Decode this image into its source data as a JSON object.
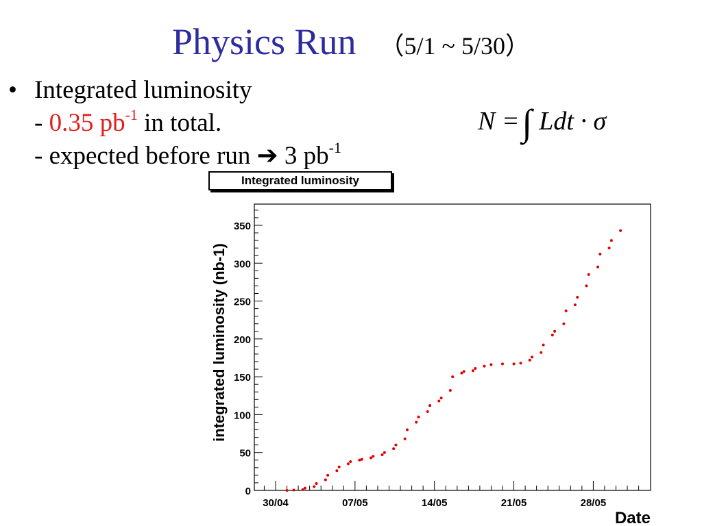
{
  "slide": {
    "title": "Physics Run",
    "title_range": "（5/1 ~ 5/30）"
  },
  "bullets": {
    "heading": "Integrated luminosity",
    "line1_prefix": "- ",
    "line1_value": "0.35 pb",
    "line1_sup": "-1",
    "line1_suffix": " in total.",
    "line2_prefix": "- expected before run ",
    "line2_arrow": "➔",
    "line2_value": " 3 pb",
    "line2_sup": "-1"
  },
  "formula": {
    "lhs": "N =",
    "integral": "∫",
    "rhs": "Ldt · σ"
  },
  "colors": {
    "title": "#2c2c9e",
    "highlight": "#e02020",
    "markers": "#e00000"
  },
  "chart_data": {
    "type": "scatter",
    "title": "Integrated luminosity",
    "xlabel": "Date",
    "ylabel": "integrated luminosity (nb-1)",
    "x_ticks": [
      "30/04",
      "07/05",
      "14/05",
      "21/05",
      "28/05"
    ],
    "y_ticks": [
      0,
      50,
      100,
      150,
      200,
      250,
      300,
      350
    ],
    "ylim": [
      0,
      378
    ],
    "grid": false,
    "series": [
      {
        "points": [
          [
            "01/05",
            0
          ],
          [
            "02/05",
            0.5
          ],
          [
            "02/05",
            1
          ],
          [
            "03/05",
            3
          ],
          [
            "03/05",
            5
          ],
          [
            "04/05",
            9
          ],
          [
            "04/05",
            14
          ],
          [
            "05/05",
            20
          ],
          [
            "05/05",
            26
          ],
          [
            "06/05",
            31
          ],
          [
            "06/05",
            35
          ],
          [
            "07/05",
            38
          ],
          [
            "07/05",
            40
          ],
          [
            "08/05",
            41
          ],
          [
            "08/05",
            43
          ],
          [
            "09/05",
            45
          ],
          [
            "09/05",
            47
          ],
          [
            "10/05",
            50
          ],
          [
            "10/05",
            55
          ],
          [
            "11/05",
            60
          ],
          [
            "11/05",
            68
          ],
          [
            "12/05",
            80
          ],
          [
            "12/05",
            90
          ],
          [
            "13/05",
            97
          ],
          [
            "13/05",
            104
          ],
          [
            "14/05",
            112
          ],
          [
            "14/05",
            118
          ],
          [
            "15/05",
            122
          ],
          [
            "15/05",
            132
          ],
          [
            "16/05",
            150
          ],
          [
            "16/05",
            155
          ],
          [
            "17/05",
            157
          ],
          [
            "17/05",
            158
          ],
          [
            "18/05",
            161
          ],
          [
            "18/05",
            164
          ],
          [
            "19/05",
            166
          ],
          [
            "20/05",
            167
          ],
          [
            "21/05",
            167
          ],
          [
            "22/05",
            168
          ],
          [
            "22/05",
            172
          ],
          [
            "23/05",
            176
          ],
          [
            "23/05",
            182
          ],
          [
            "24/05",
            192
          ],
          [
            "24/05",
            205
          ],
          [
            "25/05",
            210
          ],
          [
            "25/05",
            220
          ],
          [
            "26/05",
            237
          ],
          [
            "26/05",
            245
          ],
          [
            "27/05",
            255
          ],
          [
            "27/05",
            270
          ],
          [
            "28/05",
            285
          ],
          [
            "28/05",
            295
          ],
          [
            "29/05",
            312
          ],
          [
            "29/05",
            320
          ],
          [
            "30/05",
            330
          ],
          [
            "30/05",
            343
          ]
        ]
      }
    ]
  }
}
